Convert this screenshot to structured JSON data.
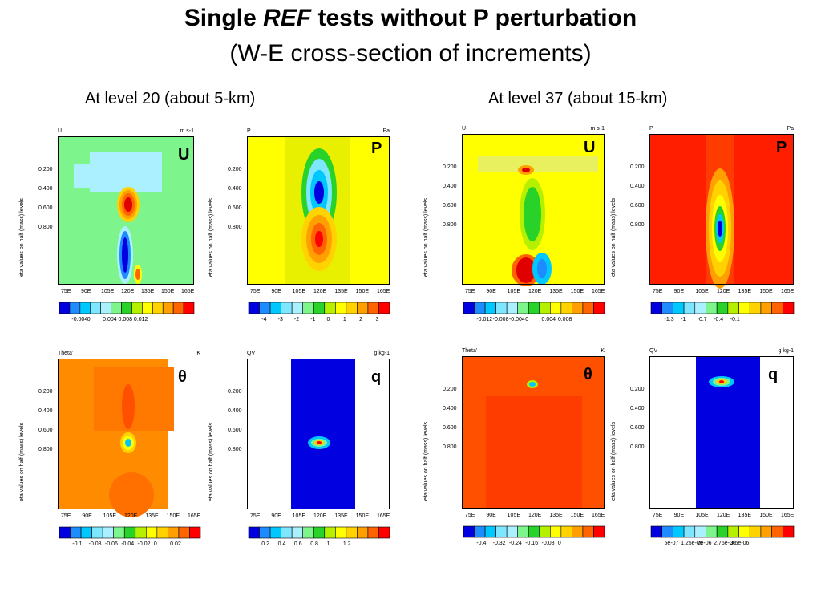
{
  "title": {
    "prefix": "Single",
    "emph": "REF",
    "suffix": "tests without P perturbation"
  },
  "subtitle": "(W-E cross-section of increments)",
  "levels": {
    "left": "At level 20 (about 5-km)",
    "right": "At level 37 (about 15-km)"
  },
  "common": {
    "ylabel": "eta values on half (mass) levels",
    "yticks": [
      "0.200",
      "0.400",
      "0.600",
      "0.800"
    ],
    "xticks": [
      "75E",
      "90E",
      "105E",
      "120E",
      "135E",
      "150E",
      "165E"
    ]
  },
  "panels": [
    {
      "var": "U",
      "unit": "m s-1",
      "label": "U",
      "bg": "#7ef58c",
      "colorbar": {
        "colors": [
          "#0000e0",
          "#1e8cff",
          "#00c8ff",
          "#7ee6ff",
          "#aaf0ff",
          "#7ef58c",
          "#28d228",
          "#b4f000",
          "#ffff00",
          "#ffd200",
          "#ffa000",
          "#ff6400",
          "#ff0000"
        ],
        "ticks": [
          "-0.004",
          "0",
          "0.004",
          "0.008",
          "0.012"
        ]
      }
    },
    {
      "var": "P",
      "unit": "Pa",
      "label": "P",
      "bg": "#ffff00",
      "colorbar": {
        "colors": [
          "#0000e0",
          "#1e8cff",
          "#00c8ff",
          "#7ee6ff",
          "#aaf0ff",
          "#7ef58c",
          "#28d228",
          "#b4f000",
          "#ffff00",
          "#ffd200",
          "#ffa000",
          "#ff6400",
          "#ff0000"
        ],
        "ticks": [
          "-4",
          "-3",
          "-2",
          "-1",
          "0",
          "1",
          "2",
          "3"
        ]
      }
    },
    {
      "var": "U",
      "unit": "m s-1",
      "label": "U",
      "bg": "#ffff00",
      "colorbar": {
        "colors": [
          "#0000e0",
          "#1e8cff",
          "#00c8ff",
          "#7ee6ff",
          "#aaf0ff",
          "#7ef58c",
          "#28d228",
          "#b4f000",
          "#ffff00",
          "#ffd200",
          "#ffa000",
          "#ff6400",
          "#ff0000"
        ],
        "ticks": [
          "-0.012",
          "-0.008",
          "-0.004",
          "0",
          "0.004",
          "0.008"
        ]
      }
    },
    {
      "var": "P",
      "unit": "Pa",
      "label": "P",
      "bg": "#ff1e00",
      "colorbar": {
        "colors": [
          "#0000e0",
          "#1e8cff",
          "#00c8ff",
          "#7ee6ff",
          "#aaf0ff",
          "#7ef58c",
          "#28d228",
          "#b4f000",
          "#ffff00",
          "#ffd200",
          "#ffa000",
          "#ff6400",
          "#ff0000"
        ],
        "ticks": [
          "-1.3",
          "-1",
          "-0.7",
          "-0.4",
          "-0.1"
        ]
      }
    },
    {
      "var": "Theta'",
      "unit": "K",
      "label": "θ",
      "bg": "#ff8c00",
      "colorbar": {
        "colors": [
          "#0000e0",
          "#1e8cff",
          "#00c8ff",
          "#7ee6ff",
          "#aaf0ff",
          "#7ef58c",
          "#28d228",
          "#b4f000",
          "#ffff00",
          "#ffd200",
          "#ffa000",
          "#ff6400",
          "#ff0000"
        ],
        "ticks": [
          "-0.1",
          "-0.08",
          "-0.06",
          "-0.04",
          "-0.02",
          "0",
          "0.02"
        ]
      }
    },
    {
      "var": "QV",
      "unit": "g kg-1",
      "label": "q",
      "bg": "#ffffff",
      "colorbar": {
        "colors": [
          "#0000e0",
          "#1e8cff",
          "#00c8ff",
          "#7ee6ff",
          "#aaf0ff",
          "#7ef58c",
          "#28d228",
          "#b4f000",
          "#ffff00",
          "#ffd200",
          "#ffa000",
          "#ff6400",
          "#ff0000"
        ],
        "ticks": [
          "0.2",
          "0.4",
          "0.6",
          "0.8",
          "1",
          "1.2"
        ]
      }
    },
    {
      "var": "Theta'",
      "unit": "K",
      "label": "θ",
      "bg": "#ff5000",
      "colorbar": {
        "colors": [
          "#0000e0",
          "#1e8cff",
          "#00c8ff",
          "#7ee6ff",
          "#aaf0ff",
          "#7ef58c",
          "#28d228",
          "#b4f000",
          "#ffff00",
          "#ffd200",
          "#ffa000",
          "#ff6400",
          "#ff0000"
        ],
        "ticks": [
          "-0.4",
          "-0.32",
          "-0.24",
          "-0.16",
          "-0.08",
          "0"
        ]
      }
    },
    {
      "var": "QV",
      "unit": "g kg-1",
      "label": "q",
      "bg": "#ffffff",
      "colorbar": {
        "colors": [
          "#0000e0",
          "#1e8cff",
          "#00c8ff",
          "#7ee6ff",
          "#aaf0ff",
          "#7ef58c",
          "#28d228",
          "#b4f000",
          "#ffff00",
          "#ffd200",
          "#ffa000",
          "#ff6400",
          "#ff0000"
        ],
        "ticks": [
          "5e-07",
          "1.25e-06",
          "2e-06",
          "2.75e-06",
          "3.5e-06"
        ]
      }
    }
  ]
}
